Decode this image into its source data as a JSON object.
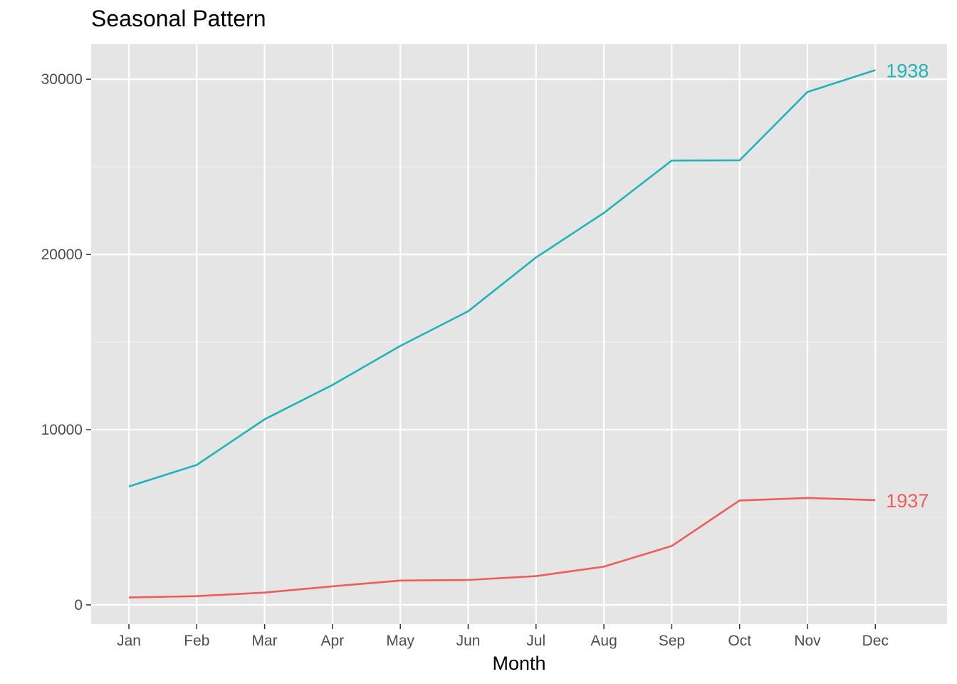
{
  "chart_data": {
    "type": "line",
    "title": "Seasonal Pattern",
    "xlabel": "Month",
    "ylabel": "",
    "categories": [
      "Jan",
      "Feb",
      "Mar",
      "Apr",
      "May",
      "Jun",
      "Jul",
      "Aug",
      "Sep",
      "Oct",
      "Nov",
      "Dec"
    ],
    "y_ticks": [
      0,
      10000,
      20000,
      30000
    ],
    "ylim": [
      -1100,
      32000
    ],
    "grid": true,
    "legend": "none",
    "background": "#e5e5e5",
    "series": [
      {
        "name": "1937",
        "color": "#ef5d58",
        "values": [
          420,
          500,
          700,
          1060,
          1390,
          1420,
          1640,
          2180,
          3360,
          5960,
          6100,
          5980
        ]
      },
      {
        "name": "1938",
        "color": "#1fb5b8",
        "values": [
          6760,
          7990,
          10590,
          12550,
          14780,
          16760,
          19830,
          22370,
          25360,
          25370,
          29270,
          30520
        ]
      }
    ]
  }
}
